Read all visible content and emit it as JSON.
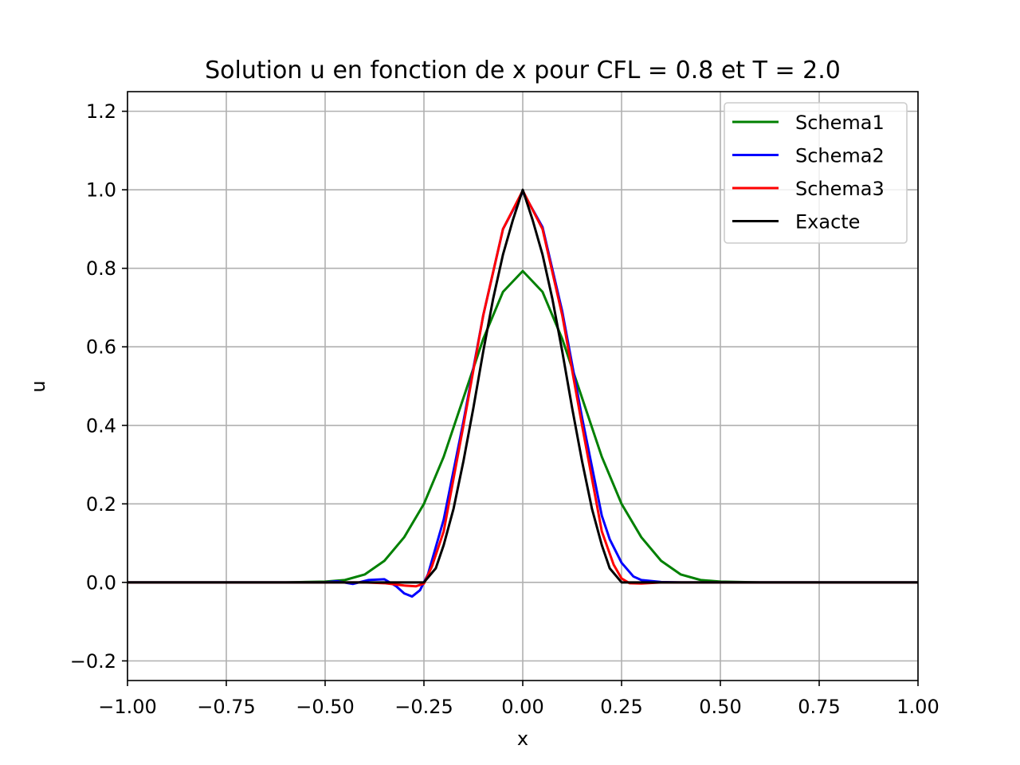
{
  "chart_data": {
    "type": "line",
    "title": "Solution u en fonction de x pour CFL = 0.8 et T = 2.0",
    "xlabel": "x",
    "ylabel": "u",
    "xlim": [
      -1.0,
      1.0
    ],
    "ylim": [
      -0.25,
      1.25
    ],
    "xticks": [
      -1.0,
      -0.75,
      -0.5,
      -0.25,
      0.0,
      0.25,
      0.5,
      0.75,
      1.0
    ],
    "xtick_labels": [
      "−1.00",
      "−0.75",
      "−0.50",
      "−0.25",
      "0.00",
      "0.25",
      "0.50",
      "0.75",
      "1.00"
    ],
    "yticks": [
      -0.2,
      0.0,
      0.2,
      0.4,
      0.6,
      0.8,
      1.0,
      1.2
    ],
    "ytick_labels": [
      "−0.2",
      "0.0",
      "0.2",
      "0.4",
      "0.6",
      "0.8",
      "1.0",
      "1.2"
    ],
    "grid": true,
    "legend_position": "top-right",
    "series": [
      {
        "name": "Schema1",
        "color": "#008000",
        "x": [
          -1.0,
          -0.6,
          -0.5,
          -0.45,
          -0.4,
          -0.35,
          -0.3,
          -0.25,
          -0.2,
          -0.15,
          -0.1,
          -0.05,
          0.0,
          0.05,
          0.1,
          0.15,
          0.2,
          0.25,
          0.3,
          0.35,
          0.4,
          0.45,
          0.5,
          0.6,
          1.0
        ],
        "y": [
          0.0,
          0.0,
          0.002,
          0.006,
          0.02,
          0.055,
          0.115,
          0.2,
          0.32,
          0.47,
          0.62,
          0.74,
          0.793,
          0.74,
          0.62,
          0.47,
          0.32,
          0.2,
          0.115,
          0.055,
          0.02,
          0.006,
          0.002,
          0.0,
          0.0
        ]
      },
      {
        "name": "Schema2",
        "color": "#0000ff",
        "x": [
          -1.0,
          -0.5,
          -0.47,
          -0.43,
          -0.39,
          -0.35,
          -0.32,
          -0.3,
          -0.28,
          -0.26,
          -0.24,
          -0.22,
          -0.2,
          -0.15,
          -0.1,
          -0.05,
          0.0,
          0.05,
          0.1,
          0.15,
          0.2,
          0.22,
          0.25,
          0.28,
          0.3,
          0.35,
          0.4,
          1.0
        ],
        "y": [
          0.0,
          0.0,
          0.003,
          -0.004,
          0.006,
          0.008,
          -0.01,
          -0.028,
          -0.036,
          -0.02,
          0.02,
          0.09,
          0.16,
          0.41,
          0.68,
          0.9,
          0.995,
          0.905,
          0.69,
          0.42,
          0.17,
          0.11,
          0.05,
          0.015,
          0.006,
          0.001,
          0.0,
          0.0
        ]
      },
      {
        "name": "Schema3",
        "color": "#ff0000",
        "x": [
          -1.0,
          -0.4,
          -0.35,
          -0.3,
          -0.27,
          -0.25,
          -0.23,
          -0.2,
          -0.15,
          -0.1,
          -0.05,
          0.0,
          0.05,
          0.1,
          0.15,
          0.2,
          0.23,
          0.25,
          0.27,
          0.3,
          0.35,
          1.0
        ],
        "y": [
          0.0,
          0.0,
          -0.002,
          -0.008,
          -0.01,
          -0.003,
          0.04,
          0.13,
          0.4,
          0.68,
          0.9,
          0.998,
          0.9,
          0.68,
          0.4,
          0.13,
          0.045,
          0.01,
          -0.002,
          -0.003,
          0.0,
          0.0
        ]
      },
      {
        "name": "Exacte",
        "color": "#000000",
        "x": [
          -1.0,
          -0.26,
          -0.25,
          -0.22,
          -0.2,
          -0.175,
          -0.15,
          -0.125,
          -0.1,
          -0.075,
          -0.05,
          -0.025,
          0.0,
          0.025,
          0.05,
          0.075,
          0.1,
          0.125,
          0.15,
          0.175,
          0.2,
          0.22,
          0.25,
          0.26,
          1.0
        ],
        "y": [
          0.0,
          0.0,
          0.0,
          0.036,
          0.095,
          0.188,
          0.309,
          0.444,
          0.588,
          0.722,
          0.835,
          0.923,
          1.0,
          0.923,
          0.835,
          0.722,
          0.588,
          0.444,
          0.309,
          0.188,
          0.095,
          0.036,
          0.0,
          0.0,
          0.0
        ]
      }
    ]
  }
}
